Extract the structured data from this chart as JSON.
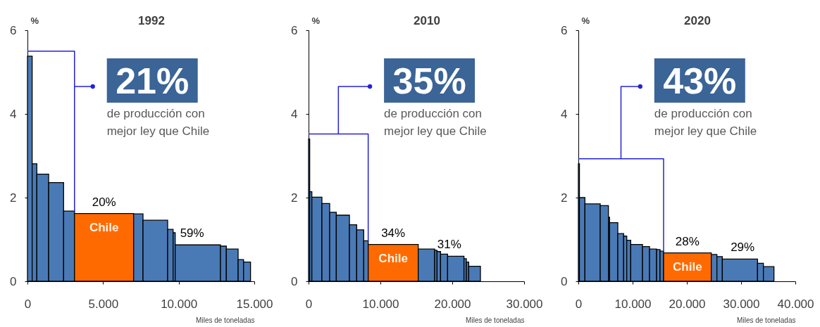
{
  "chart_data": [
    {
      "type": "histogram",
      "title": "1992",
      "xlabel": "Miles de toneladas",
      "ylabel": "%",
      "bins": [
        0,
        310,
        620,
        1400,
        2390,
        3110,
        7020,
        7640,
        9270,
        9630,
        9770,
        12760,
        13150,
        13930,
        14290,
        14750
      ],
      "values": [
        5.38,
        2.81,
        2.56,
        2.36,
        1.68,
        1.62,
        1.61,
        1.46,
        1.24,
        1.16,
        0.87,
        0.84,
        0.77,
        0.52,
        0.46
      ],
      "colors": [
        "#4a7ab5",
        "#4a7ab5",
        "#4a7ab5",
        "#4a7ab5",
        "#4a7ab5",
        "#ff6a00",
        "#4a7ab5",
        "#4a7ab5",
        "#4a7ab5",
        "#4a7ab5",
        "#4a7ab5",
        "#4a7ab5",
        "#4a7ab5",
        "#4a7ab5",
        "#4a7ab5"
      ],
      "xlim": [
        0,
        15000
      ],
      "xticks": [
        0,
        {
          "value": 5000,
          "label": "5.000"
        },
        {
          "value": 10000,
          "label": "10.000"
        },
        {
          "value": 15000,
          "label": "15.000"
        }
      ],
      "ylim": [
        0,
        6
      ],
      "yticks": [
        0,
        2,
        4,
        6
      ],
      "annotations": [
        "21%",
        "de producción con mejor ley que Chile",
        "20%",
        "59%",
        "Chile"
      ]
    },
    {
      "type": "histogram",
      "title": "2010",
      "xlabel": "Miles de toneladas",
      "ylabel": "%",
      "bins": [
        0,
        160,
        460,
        1860,
        2940,
        3860,
        5690,
        6700,
        7680,
        8300,
        15260,
        17550,
        17880,
        18370,
        19350,
        21630,
        21960,
        22290,
        23920
      ],
      "values": [
        3.4,
        2.14,
        2.01,
        1.86,
        1.65,
        1.58,
        1.35,
        1.23,
        0.97,
        0.88,
        0.77,
        0.74,
        0.71,
        0.65,
        0.6,
        0.54,
        0.46,
        0.36
      ],
      "colors": [
        "#4a7ab5",
        "#4a7ab5",
        "#4a7ab5",
        "#4a7ab5",
        "#4a7ab5",
        "#4a7ab5",
        "#4a7ab5",
        "#4a7ab5",
        "#4a7ab5",
        "#ff6a00",
        "#4a7ab5",
        "#4a7ab5",
        "#4a7ab5",
        "#4a7ab5",
        "#4a7ab5",
        "#4a7ab5",
        "#4a7ab5",
        "#4a7ab5"
      ],
      "xlim": [
        0,
        30000
      ],
      "xticks": [
        0,
        {
          "value": 10000,
          "label": "10.000"
        },
        {
          "value": 20000,
          "label": "20.000"
        },
        {
          "value": 30000,
          "label": "30.000"
        }
      ],
      "ylim": [
        0,
        6
      ],
      "yticks": [
        0,
        2,
        4,
        6
      ],
      "annotations": [
        "35%",
        "de producción con mejor ley que Chile",
        "34%",
        "31%",
        "Chile"
      ]
    },
    {
      "type": "histogram",
      "title": "2020",
      "xlabel": "Miles de toneladas",
      "ylabel": "%",
      "bins": [
        0,
        200,
        1210,
        4030,
        5540,
        5760,
        7270,
        8350,
        8920,
        9650,
        11820,
        13120,
        14420,
        15060,
        15710,
        24500,
        25540,
        26540,
        33030,
        34110,
        36060
      ],
      "values": [
        2.81,
        2.0,
        1.85,
        1.81,
        1.53,
        1.4,
        1.14,
        1.08,
        0.98,
        0.88,
        0.83,
        0.77,
        0.76,
        0.72,
        0.68,
        0.64,
        0.59,
        0.53,
        0.43,
        0.35
      ],
      "colors": [
        "#4a7ab5",
        "#4a7ab5",
        "#4a7ab5",
        "#4a7ab5",
        "#4a7ab5",
        "#4a7ab5",
        "#4a7ab5",
        "#4a7ab5",
        "#4a7ab5",
        "#4a7ab5",
        "#4a7ab5",
        "#4a7ab5",
        "#4a7ab5",
        "#4a7ab5",
        "#ff6a00",
        "#4a7ab5",
        "#4a7ab5",
        "#4a7ab5",
        "#4a7ab5",
        "#4a7ab5"
      ],
      "xlim": [
        0,
        40000
      ],
      "xticks": [
        0,
        {
          "value": 10000,
          "label": "10.000"
        },
        {
          "value": 20000,
          "label": "20.000"
        },
        {
          "value": 30000,
          "label": "30.000"
        },
        {
          "value": 40000,
          "label": "40.000"
        }
      ],
      "ylim": [
        0,
        6
      ],
      "yticks": [
        0,
        2,
        4,
        6
      ],
      "annotations": [
        "43%",
        "de producción con mejor ley que Chile",
        "28%",
        "29%",
        "Chile"
      ]
    }
  ]
}
